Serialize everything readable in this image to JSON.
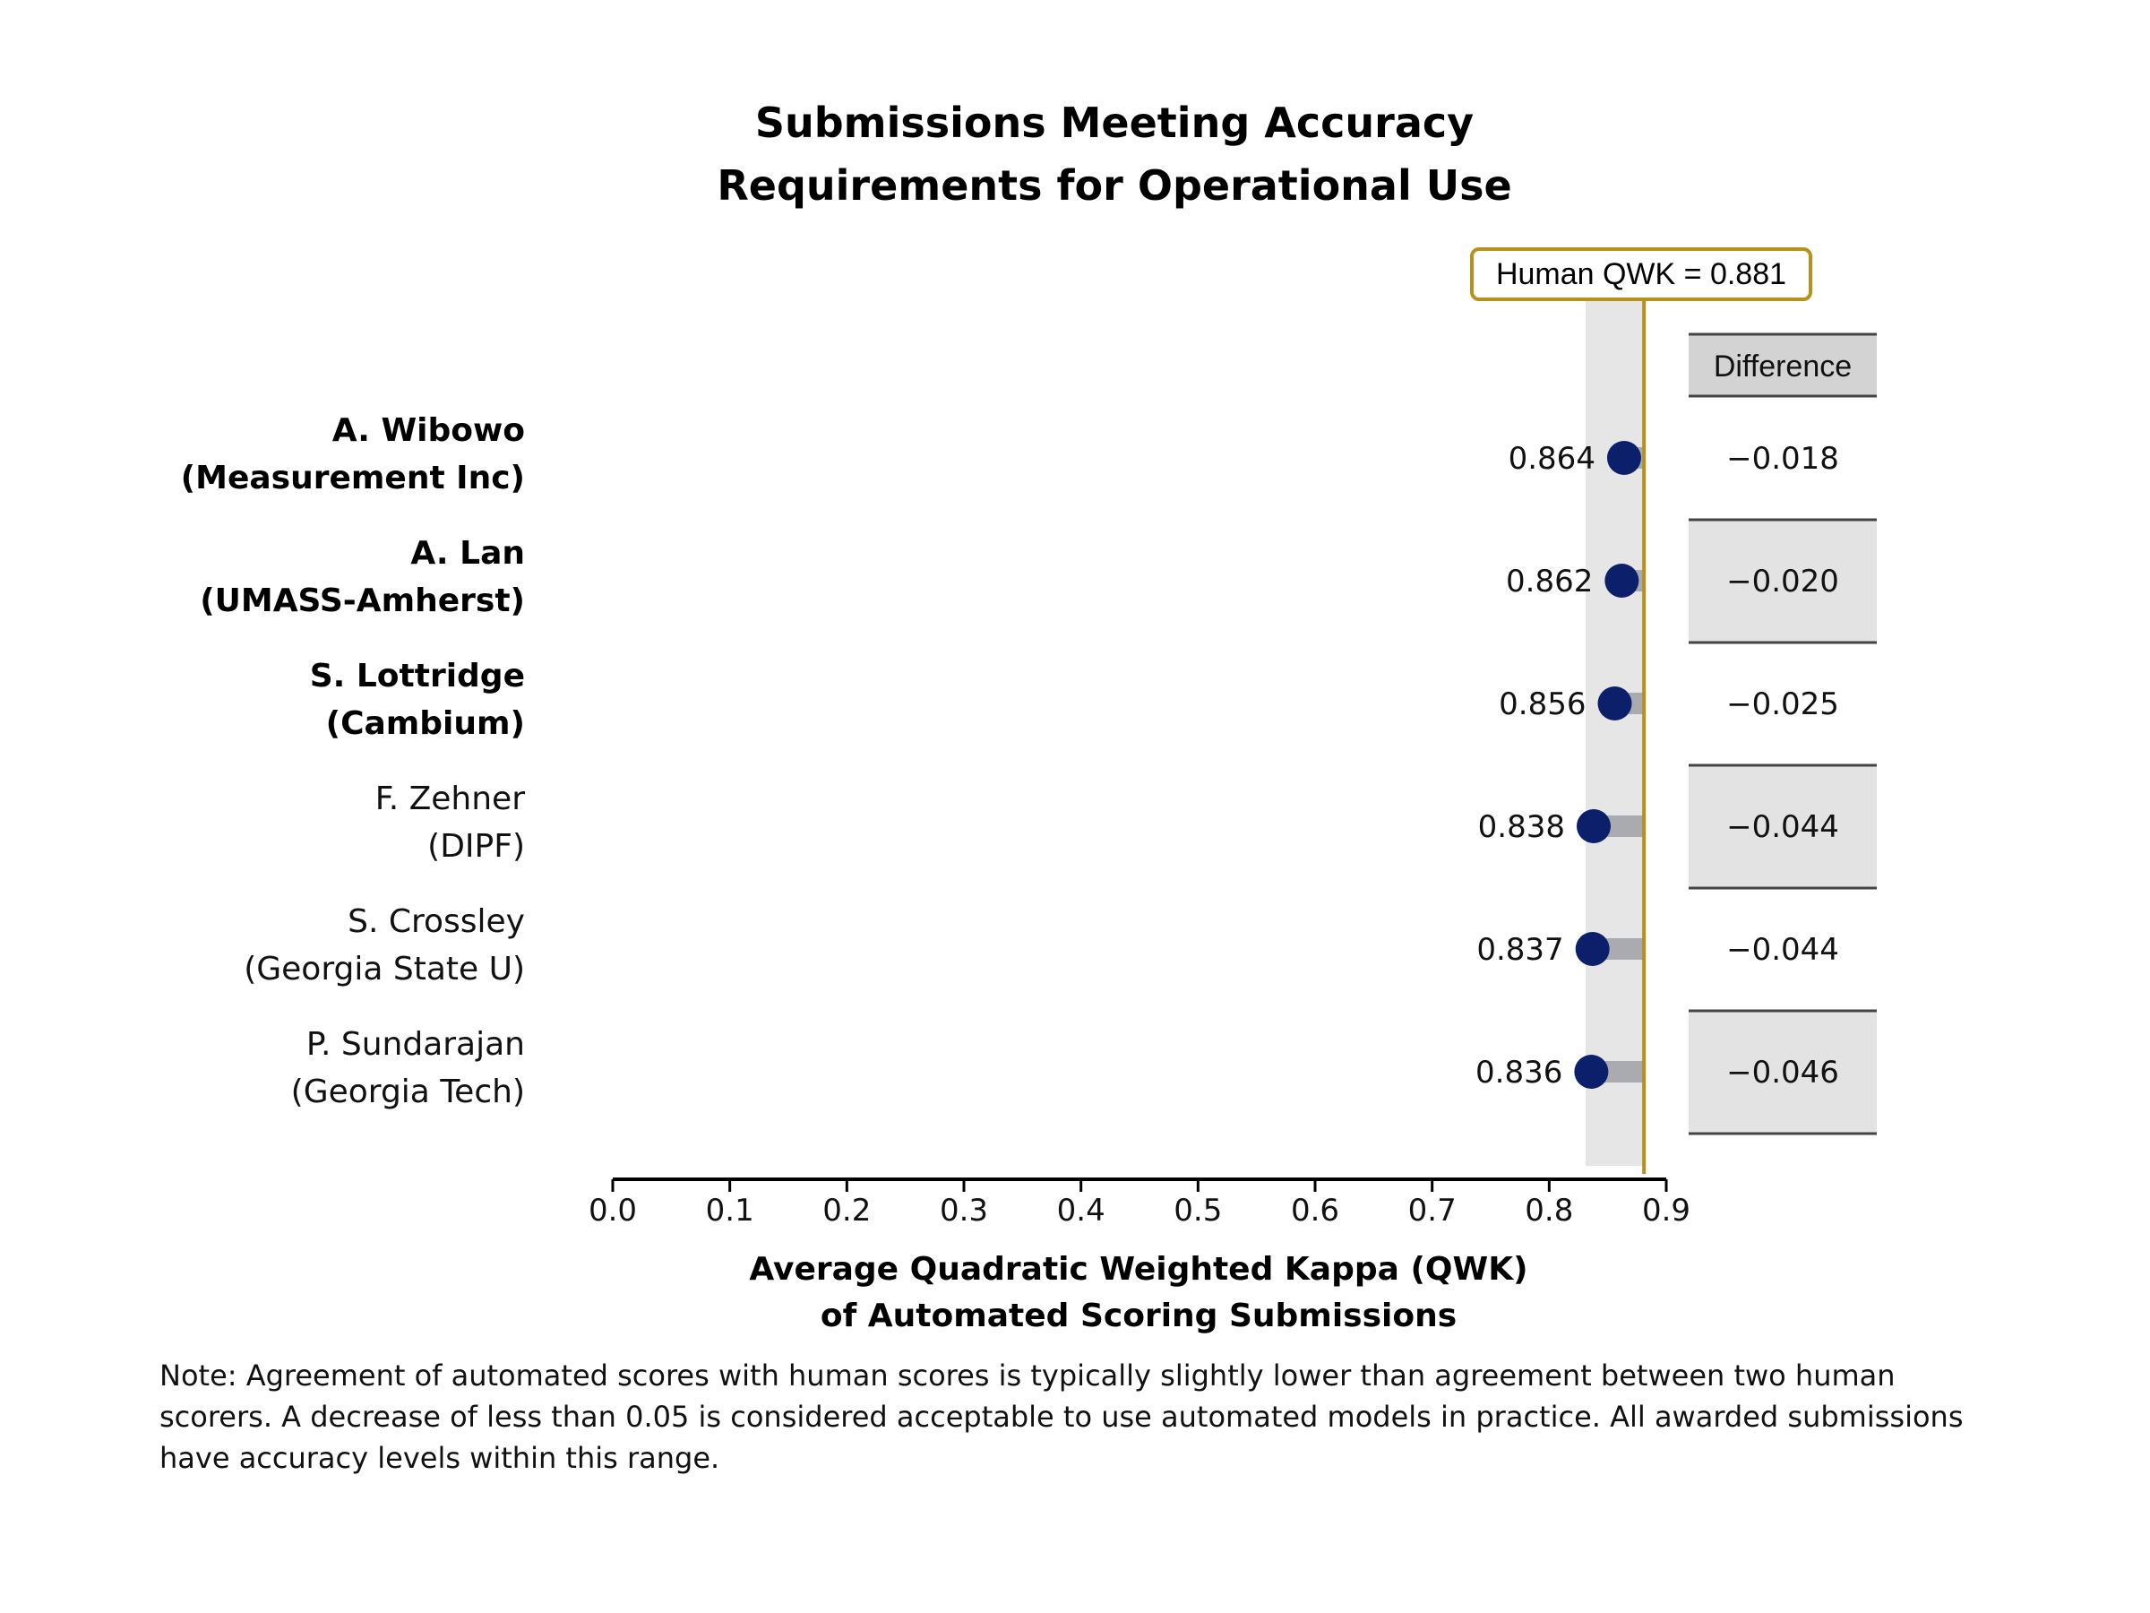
{
  "chart_data": {
    "type": "dot",
    "title": [
      "Submissions Meeting Accuracy",
      "Requirements for Operational Use"
    ],
    "xlabel": [
      "Average Quadratic Weighted Kappa (QWK)",
      "of Automated Scoring Submissions"
    ],
    "xlim": [
      0,
      0.9
    ],
    "xticks": [
      "0.0",
      "0.1",
      "0.2",
      "0.3",
      "0.4",
      "0.5",
      "0.6",
      "0.7",
      "0.8",
      "0.9"
    ],
    "reference": {
      "label": "Human QWK = 0.881",
      "value": 0.881,
      "band": [
        0.831,
        0.881
      ]
    },
    "difference_header": "Difference",
    "rows": [
      {
        "name": "A. Wibowo",
        "org": "(Measurement Inc)",
        "bold": true,
        "value": 0.864,
        "value_label": "0.864",
        "difference": "−0.018",
        "shaded": false
      },
      {
        "name": "A. Lan",
        "org": "(UMASS-Amherst)",
        "bold": true,
        "value": 0.862,
        "value_label": "0.862",
        "difference": "−0.020",
        "shaded": true
      },
      {
        "name": "S. Lottridge",
        "org": "(Cambium)",
        "bold": true,
        "value": 0.856,
        "value_label": "0.856",
        "difference": "−0.025",
        "shaded": false
      },
      {
        "name": "F. Zehner",
        "org": "(DIPF)",
        "bold": false,
        "value": 0.838,
        "value_label": "0.838",
        "difference": "−0.044",
        "shaded": true
      },
      {
        "name": "S. Crossley",
        "org": "(Georgia State U)",
        "bold": false,
        "value": 0.837,
        "value_label": "0.837",
        "difference": "−0.044",
        "shaded": false
      },
      {
        "name": "P. Sundarajan",
        "org": "(Georgia Tech)",
        "bold": false,
        "value": 0.836,
        "value_label": "0.836",
        "difference": "−0.046",
        "shaded": true
      }
    ],
    "colors": {
      "dot": "#0b1f6b",
      "reference": "#b8901c",
      "band": "#e6e6e6",
      "bar": "#a9abb0",
      "diff_shade": "#e3e3e3",
      "diff_header": "#d3d3d3"
    }
  },
  "note": "Note: Agreement of automated scores with human scores is typically slightly lower than agreement between two human scorers. A decrease of less than 0.05 is considered acceptable to use automated models in practice.  All awarded submissions have accuracy levels within this range."
}
